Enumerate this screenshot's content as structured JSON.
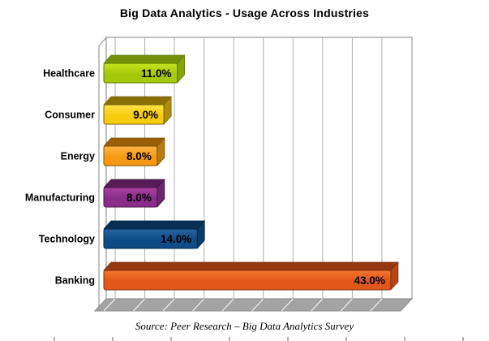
{
  "title": "Big Data Analytics - Usage Across Industries",
  "source_note": "Source: Peer Research – Big Data Analytics Survey",
  "chart_data": {
    "type": "bar",
    "orientation": "horizontal",
    "style": "3d",
    "title": "Big Data Analytics - Usage Across Industries",
    "categories": [
      "Healthcare",
      "Consumer",
      "Energy",
      "Manufacturing",
      "Technology",
      "Banking"
    ],
    "values": [
      11.0,
      9.0,
      8.0,
      8.0,
      14.0,
      43.0
    ],
    "value_labels": [
      "11.0%",
      "9.0%",
      "8.0%",
      "8.0%",
      "14.0%",
      "43.0%"
    ],
    "unit": "%",
    "xlim": [
      0,
      46
    ],
    "grid": true,
    "legend": "none",
    "bar_colors": [
      {
        "name": "healthcare",
        "front": "#A6C80A",
        "light": "#C6E41E",
        "top": "#74910A",
        "side": "#85A30C",
        "border": "#5E7A05"
      },
      {
        "name": "consumer",
        "front": "#F8CB0E",
        "light": "#FFE34A",
        "top": "#8A6F06",
        "side": "#B08C0C",
        "border": "#7A6205"
      },
      {
        "name": "energy",
        "front": "#F79914",
        "light": "#FFB547",
        "top": "#9A5E06",
        "side": "#BA7911",
        "border": "#7E5004"
      },
      {
        "name": "manufacturing",
        "front": "#8A2D8A",
        "light": "#A8429F",
        "top": "#571C57",
        "side": "#6E246E",
        "border": "#451545"
      },
      {
        "name": "technology",
        "front": "#0E4C87",
        "light": "#2762A0",
        "top": "#092E54",
        "side": "#0B3B69",
        "border": "#062443"
      },
      {
        "name": "banking",
        "front": "#E2571B",
        "light": "#F4752F",
        "top": "#933811",
        "side": "#B64515",
        "border": "#7E300C"
      }
    ],
    "plot": {
      "grid_color": "#AFAFAF",
      "wall_stroke": "#9A9A9A",
      "wall_fill": "#FFFFFF",
      "floor_fill": "#A3A3A3",
      "floor_stroke": "#8C8C8C",
      "label_color": "#000000"
    }
  },
  "ruler": {
    "tick_color": "#999999",
    "tick_count": 8
  }
}
